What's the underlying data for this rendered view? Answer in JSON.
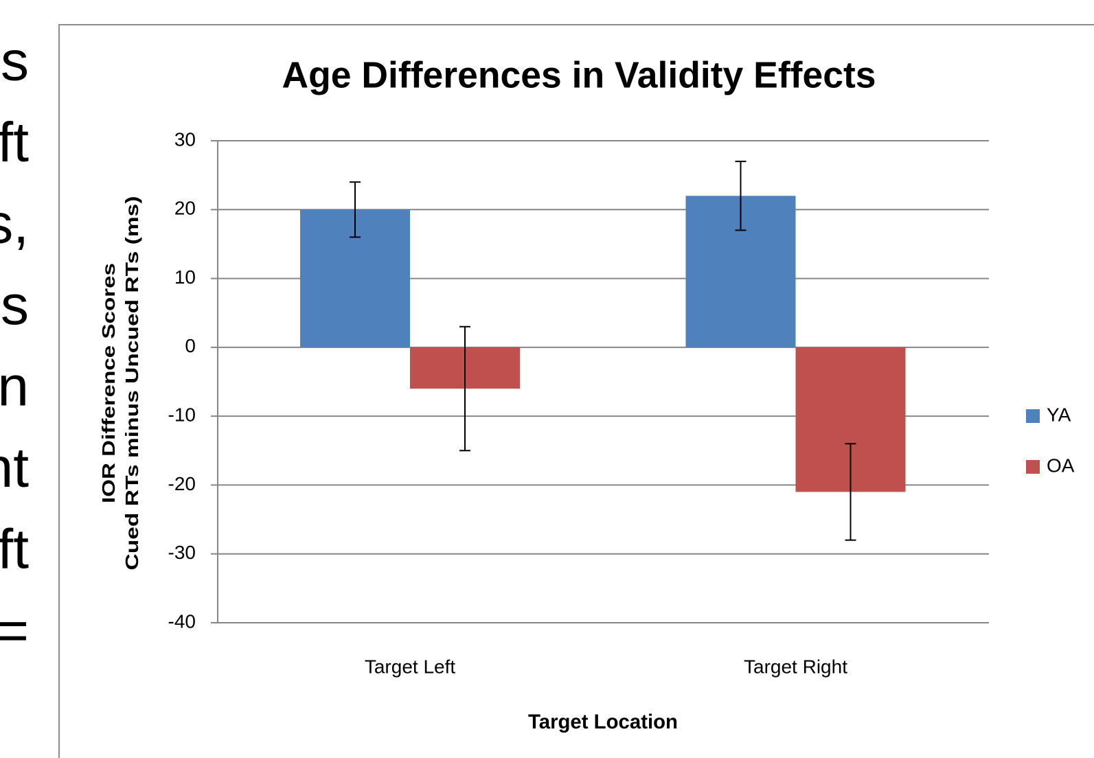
{
  "side_text": [
    "s",
    "ft",
    "s,",
    "s",
    "n",
    "nt",
    "ft",
    "="
  ],
  "chart_data": {
    "type": "bar",
    "title": "Age Differences in Validity Effects",
    "ylabel": [
      "IOR Difference Scores",
      "Cued RTs minus Uncued RTs (ms)"
    ],
    "xlabel": "Target Location",
    "categories": [
      "Target Left",
      "Target Right"
    ],
    "series": [
      {
        "name": "YA",
        "color": "#4f81bd",
        "values": [
          20,
          22
        ],
        "errors": [
          4,
          5
        ]
      },
      {
        "name": "OA",
        "color": "#c0504d",
        "values": [
          -6,
          -21
        ],
        "errors": [
          9,
          7
        ]
      }
    ],
    "ylim": [
      -40,
      30
    ],
    "yticks": [
      -40,
      -30,
      -20,
      -10,
      0,
      10,
      20,
      30
    ],
    "grid": true,
    "legend": "right"
  }
}
